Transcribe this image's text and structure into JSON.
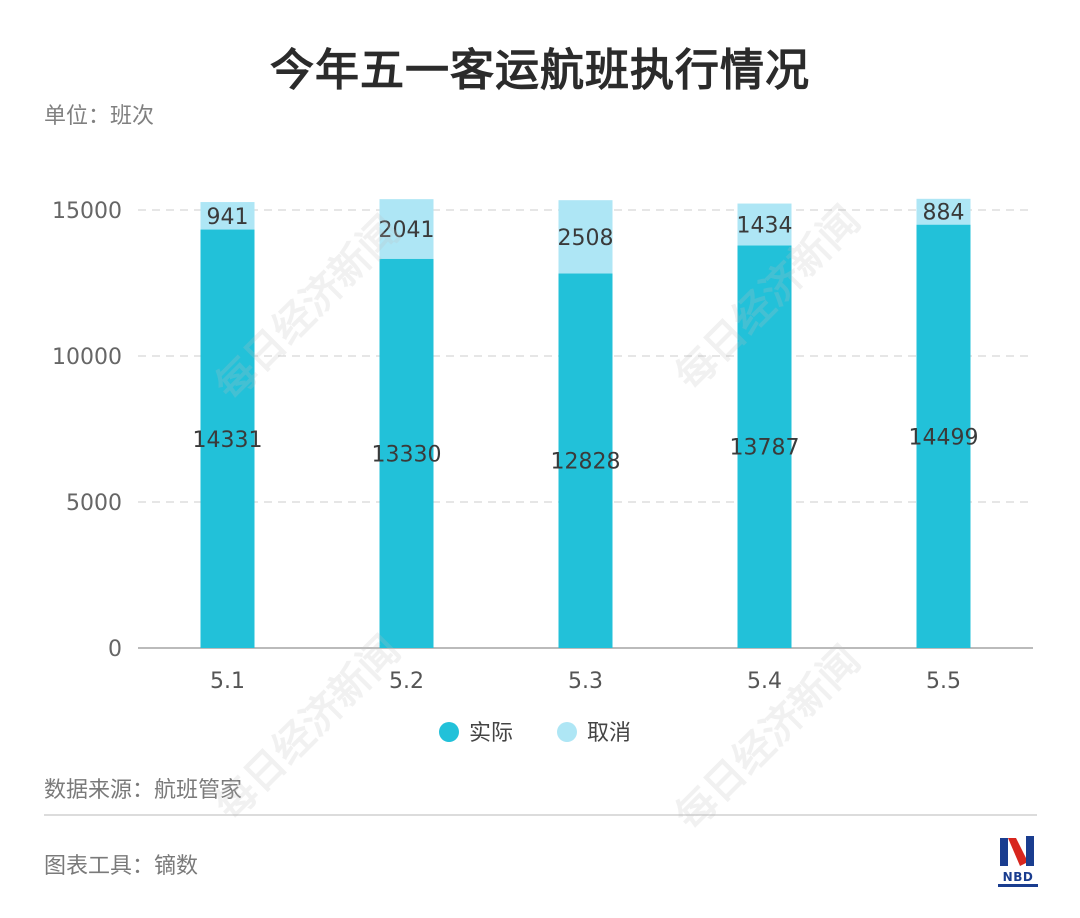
{
  "title": "今年五一客运航班执行情况",
  "unit": "单位：班次",
  "source": "数据来源：航班管家",
  "tool": "图表工具：镝数",
  "watermark": "每日经济新闻",
  "logo_text": "NBD",
  "colors": {
    "actual": "#22c1d9",
    "cancelled": "#aee6f5",
    "grid": "#dddddd",
    "axis": "#bbbbbb"
  },
  "chart_data": {
    "type": "bar",
    "stacked": true,
    "categories": [
      "5.1",
      "5.2",
      "5.3",
      "5.4",
      "5.5"
    ],
    "series": [
      {
        "name": "实际",
        "values": [
          14331,
          13330,
          12828,
          13787,
          14499
        ]
      },
      {
        "name": "取消",
        "values": [
          941,
          2041,
          2508,
          1434,
          884
        ]
      }
    ],
    "ylim": [
      0,
      15000
    ],
    "yticks": [
      "0",
      "5000",
      "10000",
      "15000"
    ],
    "grid": true,
    "legend_position": "bottom"
  }
}
